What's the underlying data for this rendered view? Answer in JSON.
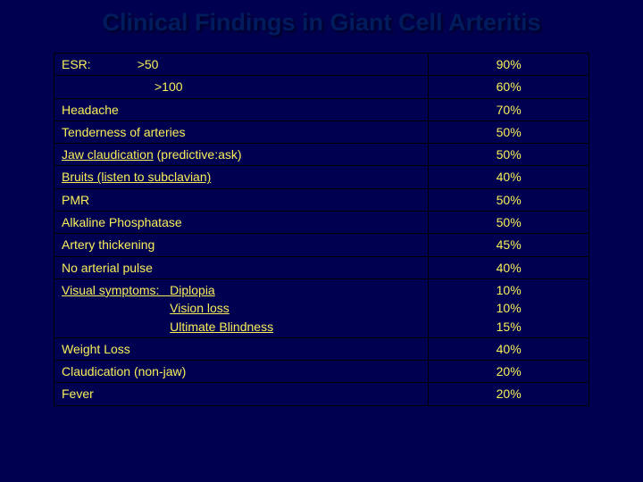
{
  "colors": {
    "background": "#000050",
    "title_color": "#001b5e",
    "cell_text_color": "#f9ee5a",
    "border_color": "#000000"
  },
  "title": "Clinical Findings in Giant Cell Arteritis",
  "rows": [
    {
      "label_prefix": "ESR:",
      "label_main": ">50",
      "pct": "90%"
    },
    {
      "label_prefix": "",
      "label_main": ">100",
      "pct": "60%"
    },
    {
      "label_main": "Headache",
      "pct": "70%"
    },
    {
      "label_main": "Tenderness of arteries",
      "pct": "50%"
    },
    {
      "label_under": "Jaw claudication",
      "label_after": " (predictive:ask)",
      "pct": "50%"
    },
    {
      "label_under": "Bruits (listen to subclavian)",
      "pct": "40%"
    },
    {
      "label_main": "PMR",
      "pct": "50%"
    },
    {
      "label_main": "Alkaline Phosphatase",
      "pct": "50%"
    },
    {
      "label_main": "Artery thickening",
      "pct": "45%"
    },
    {
      "label_main": "No arterial pulse",
      "pct": "40%"
    },
    {
      "visual_lead": "Visual symptoms:   ",
      "visual_lines": "Diplopia\nVision loss\nUltimate Blindness",
      "pct": "10%\n10%\n15%"
    },
    {
      "label_main": "Weight Loss",
      "pct": "40%"
    },
    {
      "label_main": "Claudication (non-jaw)",
      "pct": "20%"
    },
    {
      "label_main": "Fever",
      "pct": "20%"
    }
  ]
}
